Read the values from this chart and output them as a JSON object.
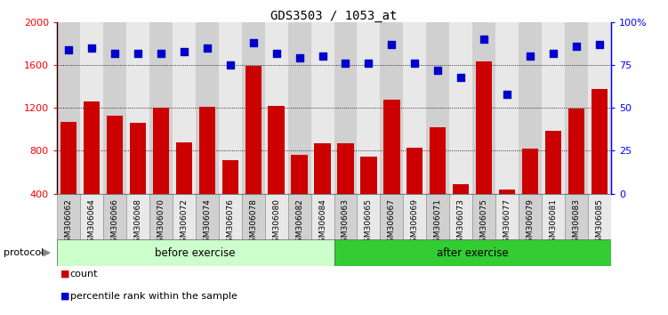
{
  "title": "GDS3503 / 1053_at",
  "categories": [
    "GSM306062",
    "GSM306064",
    "GSM306066",
    "GSM306068",
    "GSM306070",
    "GSM306072",
    "GSM306074",
    "GSM306076",
    "GSM306078",
    "GSM306080",
    "GSM306082",
    "GSM306084",
    "GSM306063",
    "GSM306065",
    "GSM306067",
    "GSM306069",
    "GSM306071",
    "GSM306073",
    "GSM306075",
    "GSM306077",
    "GSM306079",
    "GSM306081",
    "GSM306083",
    "GSM306085"
  ],
  "counts": [
    1070,
    1260,
    1130,
    1060,
    1200,
    880,
    1210,
    710,
    1590,
    1220,
    760,
    870,
    870,
    750,
    1280,
    830,
    1020,
    490,
    1630,
    440,
    820,
    990,
    1190,
    1380
  ],
  "percentile": [
    84,
    85,
    82,
    82,
    82,
    83,
    85,
    75,
    88,
    82,
    79,
    80,
    76,
    76,
    87,
    76,
    72,
    68,
    90,
    58,
    80,
    82,
    86,
    87
  ],
  "before_count": 12,
  "after_count": 12,
  "before_label": "before exercise",
  "after_label": "after exercise",
  "protocol_label": "protocol",
  "bar_color": "#cc0000",
  "dot_color": "#0000cc",
  "before_bg": "#ccffcc",
  "after_bg": "#33cc33",
  "ymin": 400,
  "ymax": 2000,
  "yticks": [
    400,
    800,
    1200,
    1600,
    2000
  ],
  "y2min": 0,
  "y2max": 100,
  "y2ticks": [
    0,
    25,
    50,
    75,
    100
  ],
  "grid_values": [
    800,
    1200,
    1600
  ],
  "legend_count": "count",
  "legend_pct": "percentile rank within the sample",
  "bar_width": 0.7,
  "col_colors": [
    "#d0d0d0",
    "#e8e8e8"
  ]
}
